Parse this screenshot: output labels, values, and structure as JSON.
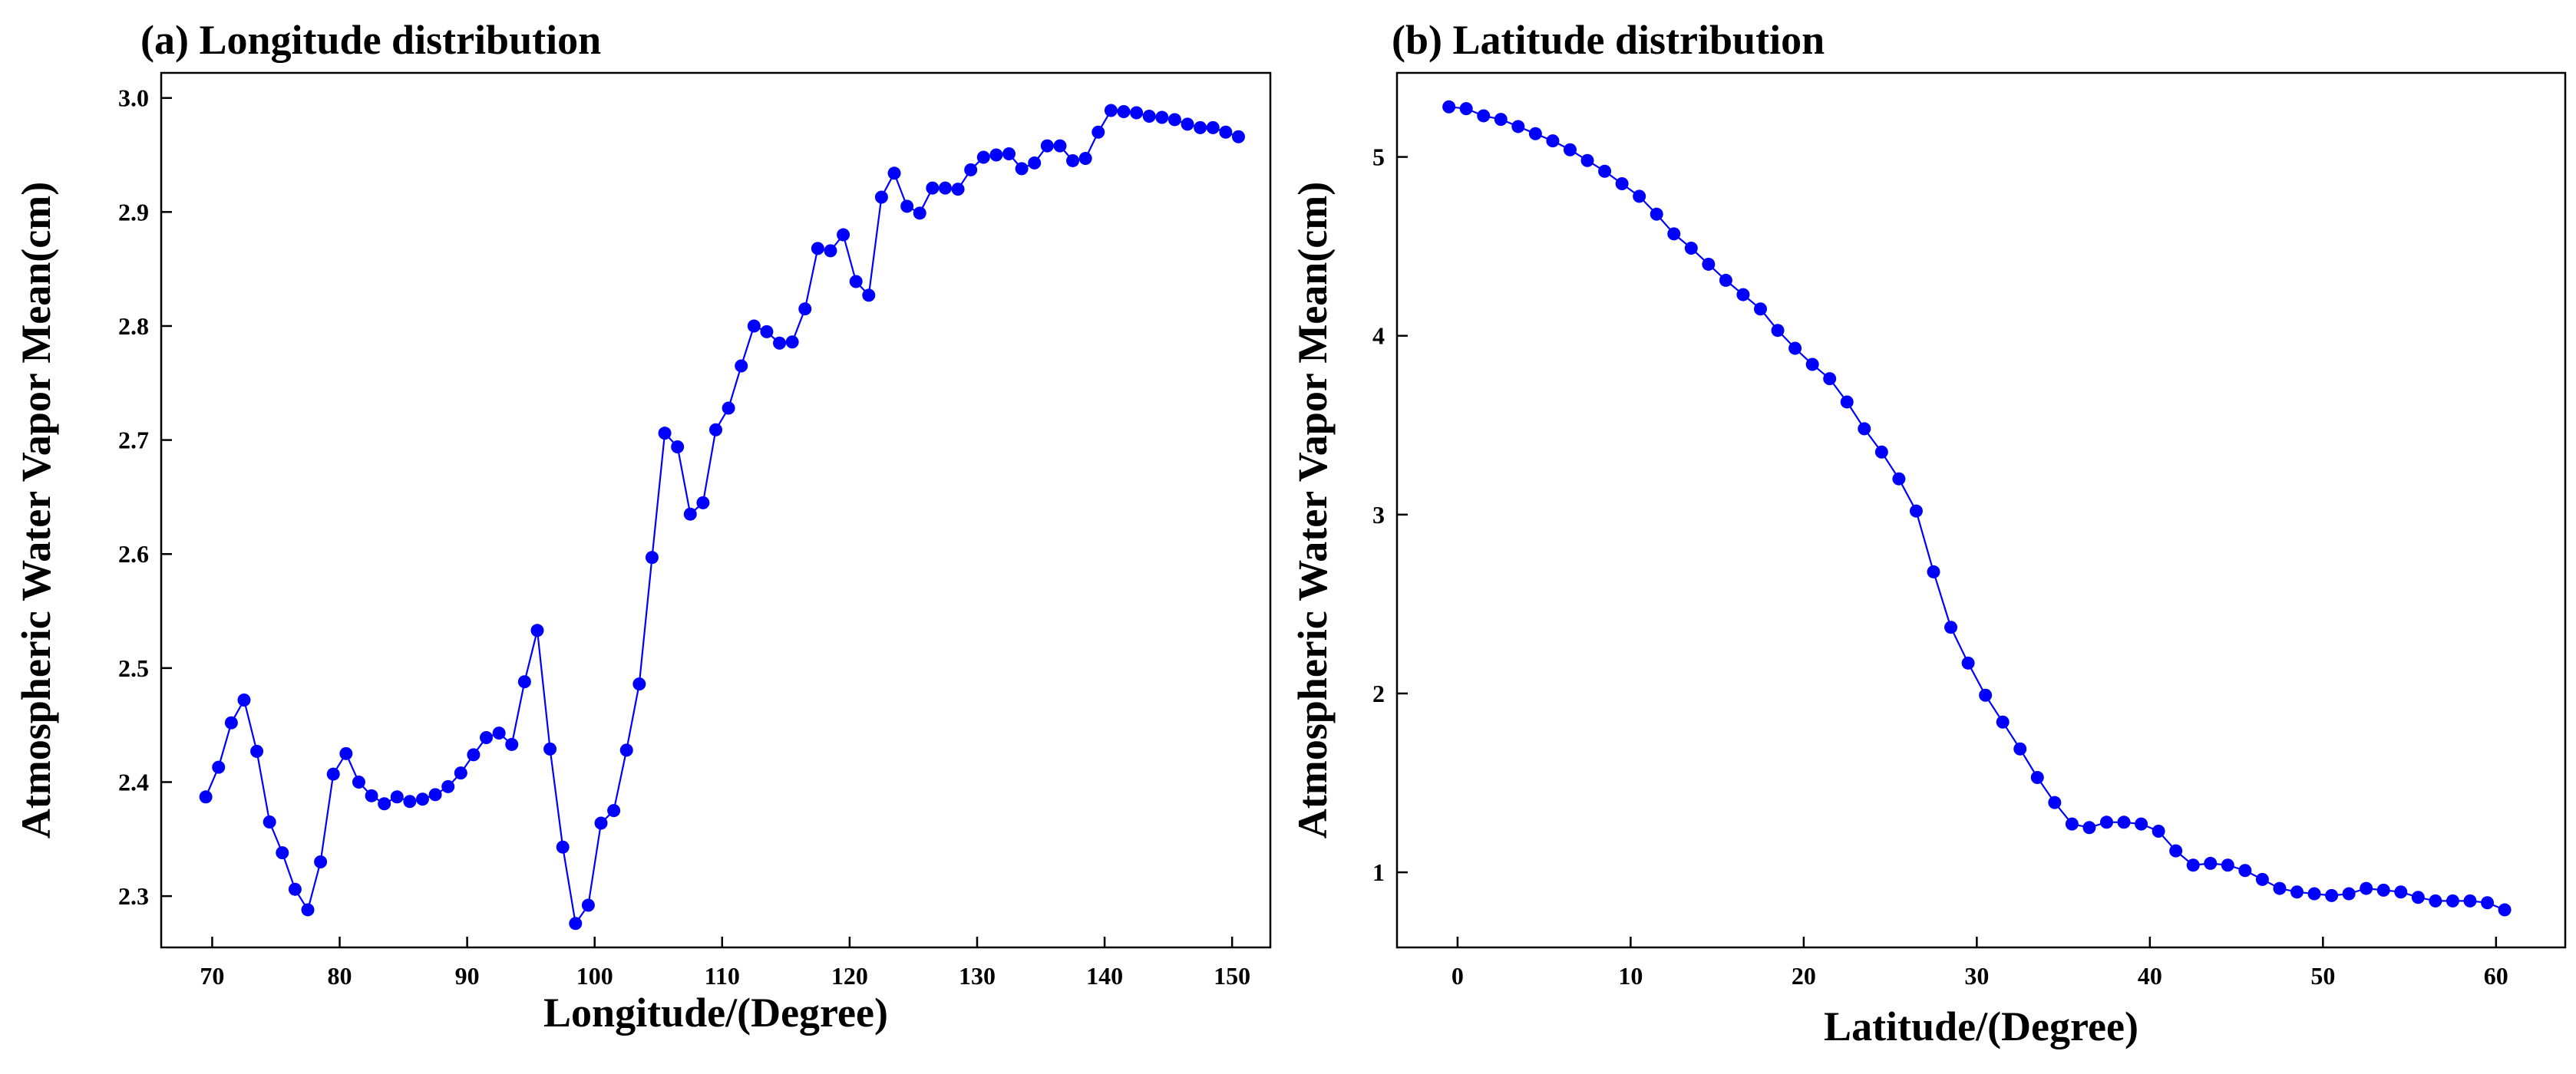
{
  "chart_data": [
    {
      "type": "line",
      "title": "(a) Longitude distribution",
      "xlabel": "Longitude/(Degree)",
      "ylabel": "Atmospheric Water Vapor Mean(cm)",
      "xlim": [
        66,
        153
      ],
      "ylim": [
        2.255,
        3.022
      ],
      "xticks": [
        70,
        80,
        90,
        100,
        110,
        120,
        130,
        140,
        150
      ],
      "xtick_labels": [
        "70",
        "80",
        "90",
        "100",
        "110",
        "120",
        "130",
        "140",
        "150"
      ],
      "yticks": [
        2.3,
        2.4,
        2.5,
        2.6,
        2.7,
        2.8,
        2.9,
        3.0
      ],
      "ytick_labels": [
        "2.3",
        "2.4",
        "2.5",
        "2.6",
        "2.7",
        "2.8",
        "2.9",
        "3.0"
      ],
      "grid": false,
      "series": [
        {
          "color": "#0000ff",
          "marker": "circle",
          "x": [
            69.5,
            70.5,
            71.5,
            72.5,
            73.5,
            74.5,
            75.5,
            76.5,
            77.5,
            78.5,
            79.5,
            80.5,
            81.5,
            82.5,
            83.5,
            84.5,
            85.5,
            86.5,
            87.5,
            88.5,
            89.5,
            90.5,
            91.5,
            92.5,
            93.5,
            94.5,
            95.5,
            96.5,
            97.5,
            98.5,
            99.5,
            100.5,
            101.5,
            102.5,
            103.5,
            104.5,
            105.5,
            106.5,
            107.5,
            108.5,
            109.5,
            110.5,
            111.5,
            112.5,
            113.5,
            114.5,
            115.5,
            116.5,
            117.5,
            118.5,
            119.5,
            120.5,
            121.5,
            122.5,
            123.5,
            124.5,
            125.5,
            126.5,
            127.5,
            128.5,
            129.5,
            130.5,
            131.5,
            132.5,
            133.5,
            134.5,
            135.5,
            136.5,
            137.5,
            138.5,
            139.5,
            140.5,
            141.5,
            142.5,
            143.5,
            144.5,
            145.5,
            146.5,
            147.5,
            148.5,
            149.5,
            150.5
          ],
          "y": [
            2.387,
            2.413,
            2.452,
            2.472,
            2.427,
            2.365,
            2.338,
            2.306,
            2.288,
            2.33,
            2.407,
            2.425,
            2.4,
            2.388,
            2.381,
            2.387,
            2.383,
            2.385,
            2.389,
            2.396,
            2.408,
            2.424,
            2.439,
            2.443,
            2.433,
            2.488,
            2.533,
            2.429,
            2.343,
            2.276,
            2.292,
            2.364,
            2.375,
            2.428,
            2.486,
            2.597,
            2.706,
            2.694,
            2.635,
            2.645,
            2.709,
            2.728,
            2.765,
            2.8,
            2.795,
            2.785,
            2.786,
            2.815,
            2.868,
            2.866,
            2.88,
            2.839,
            2.827,
            2.913,
            2.934,
            2.905,
            2.899,
            2.921,
            2.921,
            2.92,
            2.937,
            2.948,
            2.95,
            2.951,
            2.938,
            2.943,
            2.958,
            2.958,
            2.945,
            2.947,
            2.97,
            2.989,
            2.988,
            2.987,
            2.984,
            2.983,
            2.981,
            2.977,
            2.974,
            2.974,
            2.97,
            2.966
          ]
        }
      ]
    },
    {
      "type": "line",
      "title": "(b) Latitude distribution",
      "xlabel": "Latitude/(Degree)",
      "ylabel": "Atmospheric Water Vapor Mean(cm)",
      "xlim": [
        -3.5,
        64
      ],
      "ylim": [
        0.58,
        5.47
      ],
      "xticks": [
        0,
        10,
        20,
        30,
        40,
        50,
        60
      ],
      "xtick_labels": [
        "0",
        "10",
        "20",
        "30",
        "40",
        "50",
        "60"
      ],
      "yticks": [
        1,
        2,
        3,
        4,
        5
      ],
      "ytick_labels": [
        "1",
        "2",
        "3",
        "4",
        "5"
      ],
      "grid": false,
      "series": [
        {
          "color": "#0000ff",
          "marker": "circle",
          "x": [
            -0.5,
            0.5,
            1.5,
            2.5,
            3.5,
            4.5,
            5.5,
            6.5,
            7.5,
            8.5,
            9.5,
            10.5,
            11.5,
            12.5,
            13.5,
            14.5,
            15.5,
            16.5,
            17.5,
            18.5,
            19.5,
            20.5,
            21.5,
            22.5,
            23.5,
            24.5,
            25.5,
            26.5,
            27.5,
            28.5,
            29.5,
            30.5,
            31.5,
            32.5,
            33.5,
            34.5,
            35.5,
            36.5,
            37.5,
            38.5,
            39.5,
            40.5,
            41.5,
            42.5,
            43.5,
            44.5,
            45.5,
            46.5,
            47.5,
            48.5,
            49.5,
            50.5,
            51.5,
            52.5,
            53.5,
            54.5,
            55.5,
            56.5,
            57.5,
            58.5,
            59.5,
            60.5
          ],
          "y": [
            5.28,
            5.27,
            5.23,
            5.21,
            5.17,
            5.13,
            5.09,
            5.04,
            4.98,
            4.92,
            4.85,
            4.78,
            4.68,
            4.57,
            4.49,
            4.4,
            4.31,
            4.23,
            4.15,
            4.03,
            3.93,
            3.84,
            3.76,
            3.63,
            3.48,
            3.35,
            3.2,
            3.02,
            2.68,
            2.37,
            2.17,
            1.99,
            1.84,
            1.69,
            1.53,
            1.39,
            1.27,
            1.25,
            1.28,
            1.28,
            1.27,
            1.23,
            1.12,
            1.04,
            1.05,
            1.04,
            1.01,
            0.96,
            0.91,
            0.89,
            0.88,
            0.87,
            0.88,
            0.91,
            0.9,
            0.89,
            0.86,
            0.84,
            0.84,
            0.84,
            0.83,
            0.79
          ]
        }
      ]
    }
  ]
}
